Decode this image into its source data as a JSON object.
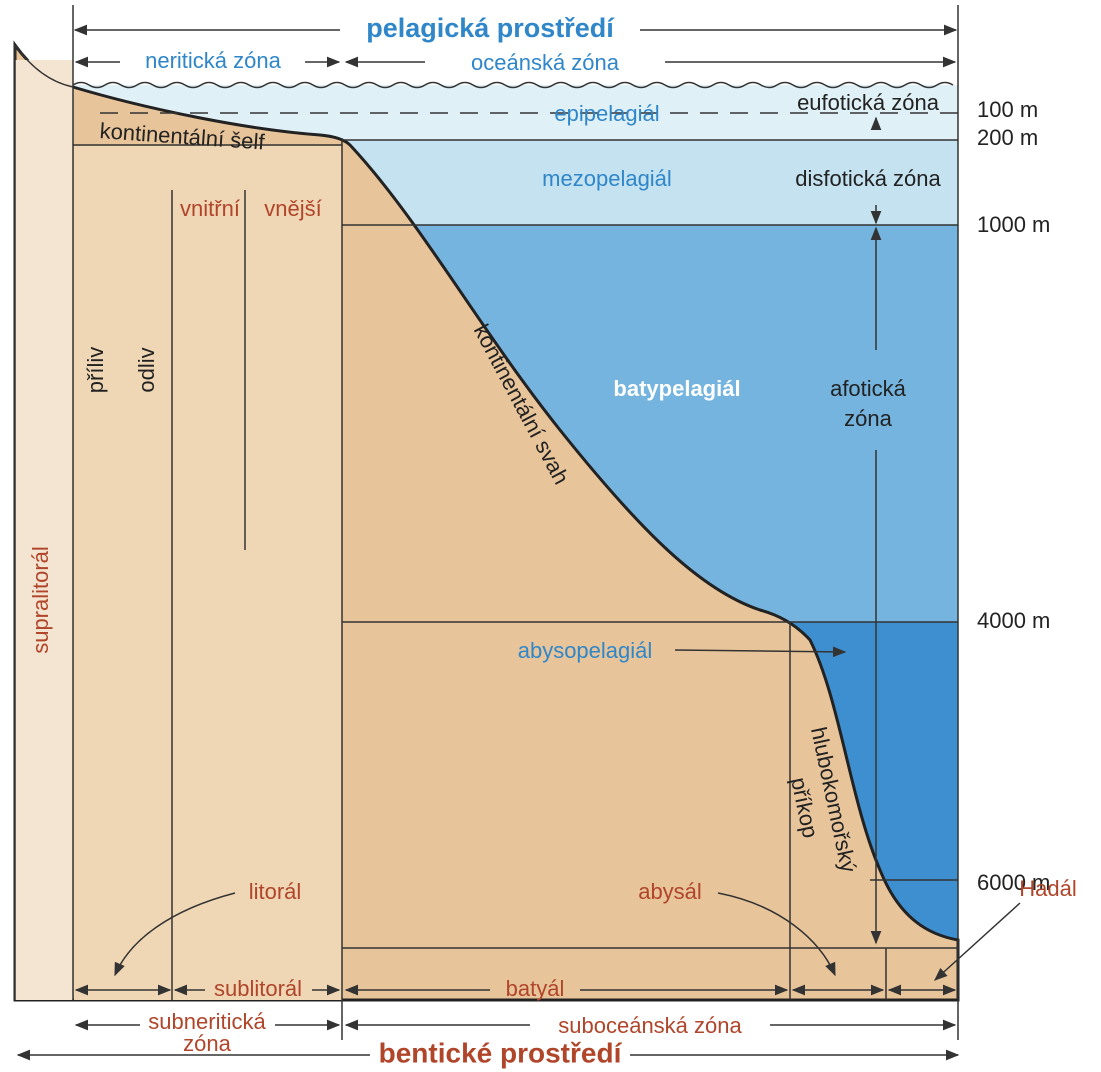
{
  "top": {
    "pelagic": "pelagická prostředí",
    "neritic": "neritická zóna",
    "oceanic": "oceánská zóna"
  },
  "water_zones": {
    "epipelagial": "epipelagiál",
    "mezopelagial": "mezopelagiál",
    "batypelagial": "batypelagiál",
    "abysopelagial": "abysopelagiál"
  },
  "light_zones": {
    "eufotic": "eufotická zóna",
    "disfotic": "disfotická zóna",
    "afotic": [
      "afotická",
      "zóna"
    ]
  },
  "depths": [
    "100 m",
    "200 m",
    "1000 m",
    "4000 m",
    "6000 m"
  ],
  "shelf": {
    "label": "kontinentální šelf",
    "inner": "vnitřní",
    "outer": "vnější",
    "tide_in": "příliv",
    "tide_out": "odliv"
  },
  "slope": "kontinentální svah",
  "trench": [
    "hlubokomořský",
    "příkop"
  ],
  "benthic": {
    "supralitoral": "supralitorál",
    "litoral": "litorál",
    "sublitoral": "sublitorál",
    "abysal": "abysál",
    "batyal": "batyál",
    "hadal": "Hadál",
    "subneritic": [
      "subneritická",
      "zóna"
    ],
    "suboceanic": "suboceánská zóna",
    "title": "bentické prostředí"
  }
}
